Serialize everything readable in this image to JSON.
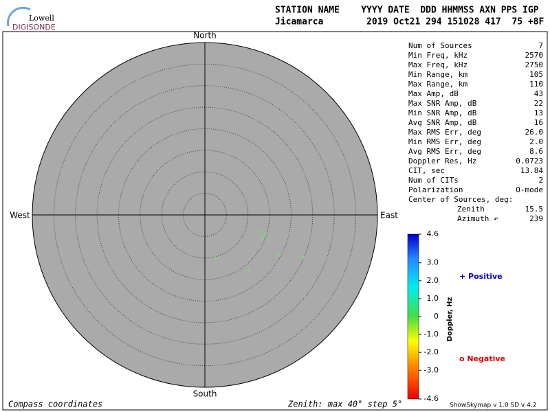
{
  "chart_data": {
    "type": "skymap",
    "logo": {
      "top": "Lowell",
      "bottom": "DIGISONDE"
    },
    "header": [
      "STATION NAME    YYYY DATE  DDD HHMMSS AXN PPS IGP",
      "Jicamarca        2019 Oct21 294 151028 417  75 +8F"
    ],
    "directions": {
      "north": "North",
      "south": "South",
      "west": "West",
      "east": "East"
    },
    "xlim": [
      -40,
      40
    ],
    "ylim": [
      -40,
      40
    ],
    "rings": [
      5,
      10,
      15,
      20,
      25,
      30,
      35
    ],
    "series": [
      {
        "color": "#66ee66",
        "x": [
          12.4,
          14.0,
          13.4,
          2.5,
          16.9,
          22.9,
          10.2
        ],
        "values": [
          -3.7,
          -4.5,
          -5.6,
          -10.0,
          -9.1,
          -9.7,
          -12.9
        ]
      }
    ],
    "stats": [
      [
        "Num of Sources",
        "7"
      ],
      [
        "Min Freq, kHz",
        "2570"
      ],
      [
        "Max Freq, kHz",
        "2750"
      ],
      [
        "Min Range, km",
        "105"
      ],
      [
        "Max Range, km",
        "110"
      ],
      [
        "Max Amp, dB",
        "43"
      ],
      [
        "Max SNR Amp, dB",
        "22"
      ],
      [
        "Min SNR Amp, dB",
        "13"
      ],
      [
        "Avg SNR Amp, dB",
        "16"
      ],
      [
        "Max RMS Err, deg",
        "26.0"
      ],
      [
        "Min RMS Err, deg",
        "2.0"
      ],
      [
        "Avg RMS Err, deg",
        "8.6"
      ],
      [
        "Doppler Res, Hz",
        "0.0723"
      ],
      [
        "CIT, sec",
        "13.84"
      ],
      [
        "Num of CITs",
        "2"
      ],
      [
        "Polarization",
        "O-mode"
      ]
    ],
    "center_of_sources": {
      "title": "Center of Sources, deg:",
      "rows": [
        [
          "Zenith",
          "15.5"
        ],
        [
          "Azimuth ↶",
          "239"
        ]
      ]
    },
    "colorbar": {
      "label": "Doppler, Hz",
      "lim": [
        -4.6,
        4.6
      ],
      "ticks": [
        4.6,
        {
          "value": 3,
          "label": "3.0"
        },
        {
          "value": 2,
          "label": "2.0"
        },
        {
          "value": 1,
          "label": "1.0"
        },
        0,
        {
          "value": -1,
          "label": "-1.0"
        },
        {
          "value": -2,
          "label": "-2.0"
        },
        {
          "value": -3,
          "label": "-3.0"
        },
        -4.6
      ]
    },
    "legend": {
      "positive": "+ Positive",
      "negative": "o Negative"
    },
    "footer": {
      "left": "Compass coordinates",
      "center": "Zenith: max 40°  step 5°",
      "right": "ShowSkymap v 1.0  SD v 4.2"
    }
  }
}
